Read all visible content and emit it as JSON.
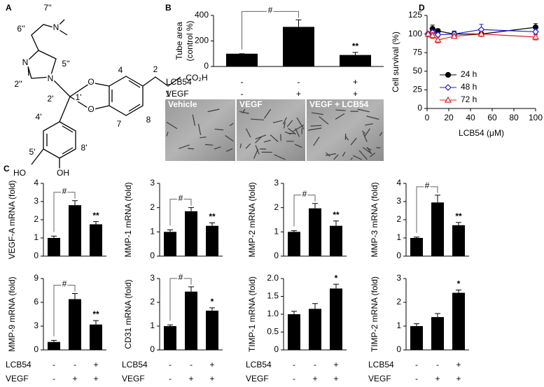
{
  "panel_labels": [
    "A",
    "B",
    "C",
    "D"
  ],
  "structure": {
    "labels": [
      "7''",
      "6''",
      "N",
      "N",
      "N",
      "5''",
      "2''",
      "2'",
      "1'",
      "O",
      "O",
      "4",
      "2",
      "1",
      "CO₂H",
      "4'",
      "5'",
      "8'",
      "7",
      "8",
      "HO",
      "OH"
    ]
  },
  "micrographs": [
    "Vehicle",
    "VEGF",
    "VEGF + LCB54"
  ],
  "chart_data": [
    {
      "type": "bar",
      "ylabel": [
        "Tube area",
        "(control %)"
      ],
      "values": [
        100,
        310,
        90
      ],
      "errors": [
        0,
        55,
        20
      ],
      "color": "#000000",
      "ylim": [
        0,
        400
      ],
      "yticks": [
        0,
        200,
        400
      ],
      "bracket_label": "#",
      "star_label": "**",
      "conditions": [
        {
          "name": "LCB54",
          "signs": [
            "-",
            "-",
            "+"
          ]
        },
        {
          "name": "VEGF",
          "signs": [
            "-",
            "+",
            "+"
          ]
        }
      ]
    },
    {
      "type": "line",
      "ylabel": "Cell survival (%)",
      "xlabel": "LCB54 (μM)",
      "legend": "lower left",
      "xlim": [
        0,
        100
      ],
      "xticks": [
        0,
        20,
        40,
        60,
        80,
        100
      ],
      "ylim": [
        0,
        125
      ],
      "yticks": [
        0,
        25,
        50,
        75,
        100,
        125
      ],
      "x": [
        1,
        5,
        10,
        25,
        50,
        100
      ],
      "series": [
        {
          "name": "24 h",
          "color": "#000000",
          "marker": "circle",
          "filled": true,
          "values": [
            100,
            107,
            104,
            100,
            100,
            109
          ],
          "errors": [
            3,
            5,
            3,
            4,
            3,
            5
          ]
        },
        {
          "name": "48 h",
          "color": "#1f1fd0",
          "marker": "diamond",
          "filled": false,
          "values": [
            100,
            102,
            99,
            100,
            106,
            103
          ],
          "errors": [
            3,
            4,
            3,
            3,
            7,
            4
          ]
        },
        {
          "name": "72 h",
          "color": "#e02020",
          "marker": "triangle",
          "filled": false,
          "values": [
            100,
            98,
            92,
            97,
            100,
            96
          ],
          "errors": [
            3,
            4,
            4,
            3,
            3,
            4
          ]
        }
      ]
    },
    {
      "type": "bar",
      "ylabel": "VEGF-A mRNA (fold)",
      "values": [
        1,
        2.8,
        1.75
      ],
      "errors": [
        0.1,
        0.25,
        0.15
      ],
      "color": "#000000",
      "ylim": [
        0,
        4
      ],
      "yticks": [
        0,
        1,
        2,
        3,
        4
      ],
      "bracket_label": "#",
      "star_label": "**"
    },
    {
      "type": "bar",
      "ylabel": "MMP-1 mRNA (fold)",
      "values": [
        1,
        1.85,
        1.25
      ],
      "errors": [
        0.08,
        0.15,
        0.12
      ],
      "color": "#000000",
      "ylim": [
        0,
        3
      ],
      "yticks": [
        0,
        1,
        2,
        3
      ],
      "bracket_label": "#",
      "star_label": "**"
    },
    {
      "type": "bar",
      "ylabel": "MMP-2 mRNA (fold)",
      "values": [
        1,
        1.97,
        1.25
      ],
      "errors": [
        0.05,
        0.2,
        0.2
      ],
      "color": "#000000",
      "ylim": [
        0,
        3
      ],
      "yticks": [
        0,
        1,
        2,
        3
      ],
      "bracket_label": "#",
      "star_label": "**"
    },
    {
      "type": "bar",
      "ylabel": "MMP-3 mRNA (fold)",
      "values": [
        1,
        2.95,
        1.7
      ],
      "errors": [
        0.05,
        0.4,
        0.15
      ],
      "color": "#000000",
      "ylim": [
        0,
        4
      ],
      "yticks": [
        0,
        1,
        2,
        3,
        4
      ],
      "bracket_label": "#",
      "star_label": "**"
    },
    {
      "type": "bar",
      "ylabel": "MMP-9 mRNA (fold)",
      "values": [
        1,
        6.4,
        3.2
      ],
      "errors": [
        0.2,
        0.7,
        0.5
      ],
      "color": "#000000",
      "ylim": [
        0,
        9
      ],
      "yticks": [
        0,
        3,
        6,
        9
      ],
      "bracket_label": "#",
      "star_label": "**",
      "conditions": [
        {
          "name": "LCB54",
          "signs": [
            "-",
            "-",
            "+"
          ]
        },
        {
          "name": "VEGF",
          "signs": [
            "-",
            "+",
            "+"
          ]
        }
      ]
    },
    {
      "type": "bar",
      "ylabel": "CD31 mRNA (fold)",
      "values": [
        1,
        2.45,
        1.65
      ],
      "errors": [
        0.05,
        0.2,
        0.12
      ],
      "color": "#000000",
      "ylim": [
        0,
        3
      ],
      "yticks": [
        0,
        1,
        2,
        3
      ],
      "bracket_label": "#",
      "star_label": "*",
      "conditions": [
        {
          "name": "LCB54",
          "signs": [
            "-",
            "-",
            "+"
          ]
        },
        {
          "name": "VEGF",
          "signs": [
            "-",
            "+",
            "+"
          ]
        }
      ]
    },
    {
      "type": "bar",
      "ylabel": "TIMP-1 mRNA (fold)",
      "values": [
        1,
        1.15,
        1.72
      ],
      "errors": [
        0.08,
        0.15,
        0.12
      ],
      "color": "#000000",
      "ylim": [
        0,
        2
      ],
      "yticks": [
        0,
        0.5,
        {
          "value": 1,
          "label": "1.0"
        },
        1.5,
        {
          "value": 2,
          "label": "2.0"
        }
      ],
      "star_label": "*",
      "conditions": [
        {
          "name": "LCB54",
          "signs": [
            "-",
            "-",
            "+"
          ]
        },
        {
          "name": "VEGF",
          "signs": [
            "-",
            "+",
            "+"
          ]
        }
      ]
    },
    {
      "type": "bar",
      "ylabel": "TIMP-2 mRNA (fold)",
      "values": [
        1,
        1.38,
        2.4
      ],
      "errors": [
        0.1,
        0.15,
        0.12
      ],
      "color": "#000000",
      "ylim": [
        0,
        3
      ],
      "yticks": [
        0,
        1,
        2,
        3
      ],
      "star_label": "*",
      "conditions": [
        {
          "name": "LCB54",
          "signs": [
            "-",
            "-",
            "+"
          ]
        },
        {
          "name": "VEGF",
          "signs": [
            "-",
            "+",
            "+"
          ]
        }
      ]
    }
  ]
}
